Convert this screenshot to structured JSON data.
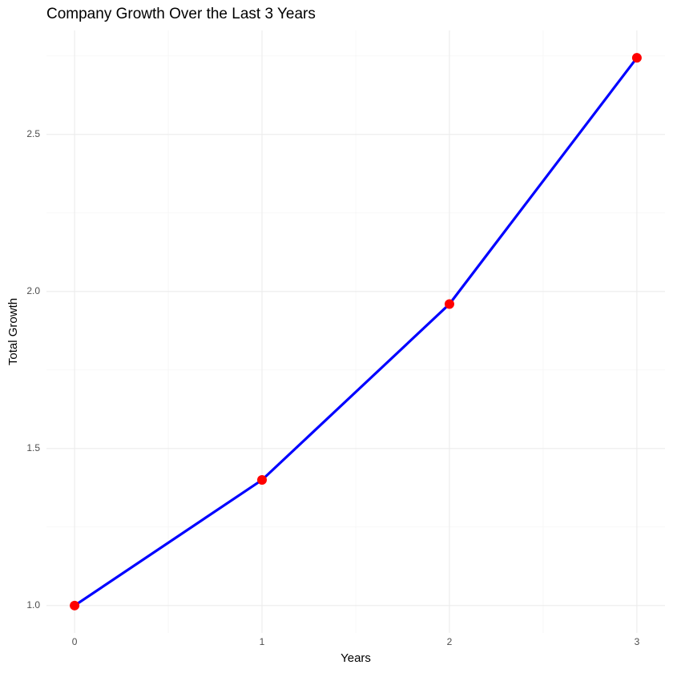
{
  "chart_data": {
    "type": "line",
    "title": "Company Growth Over the Last 3 Years",
    "x_label": "Years",
    "y_label": "Total Growth",
    "x": [
      0,
      1,
      2,
      3
    ],
    "values": [
      1.0,
      1.4,
      1.96,
      2.744
    ],
    "line_color": "#0000ff",
    "point_color": "#ff0000",
    "xlim": [
      -0.15,
      3.15
    ],
    "xticks": [
      0,
      1,
      2,
      3
    ],
    "minor_xticks": [
      0.5,
      1.5,
      2.5
    ],
    "ylim": [
      0.9128,
      2.8312
    ],
    "yticks": [
      {
        "value": 1,
        "label": "1.0"
      },
      1.5,
      {
        "value": 2,
        "label": "2.0"
      },
      2.5
    ],
    "minor_yticks": [
      1.25,
      1.75,
      2.25,
      2.75
    ],
    "grid": true
  }
}
